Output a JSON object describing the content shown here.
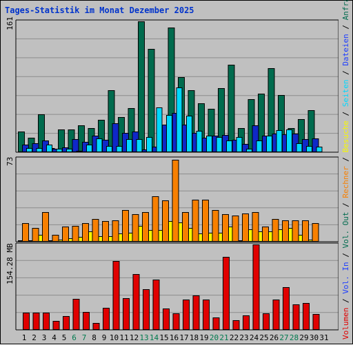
{
  "chart_data": {
    "type": "bar",
    "title": "Tages-Statistik im Monat Dezember 2025",
    "days": [
      "1",
      "2",
      "3",
      "4",
      "5",
      "6",
      "7",
      "8",
      "9",
      "10",
      "11",
      "12",
      "13",
      "14",
      "15",
      "16",
      "17",
      "18",
      "19",
      "20",
      "21",
      "22",
      "23",
      "24",
      "25",
      "26",
      "27",
      "28",
      "29",
      "30",
      "31"
    ],
    "weekend_days": [
      "6",
      "7",
      "13",
      "14",
      "20",
      "21",
      "27",
      "28"
    ],
    "panels": [
      {
        "max_label": "161",
        "ylim": [
          0,
          161
        ],
        "series": [
          {
            "name": "Anfragen",
            "color": "#006b4e",
            "values": [
              25,
              18,
              47,
              5,
              28,
              28,
              33,
              30,
              40,
              76,
              43,
              54,
              161,
              127,
              32,
              153,
              92,
              76,
              60,
              53,
              79,
              108,
              30,
              65,
              72,
              103,
              70,
              30,
              41,
              52,
              0
            ]
          },
          {
            "name": "Dateien",
            "color": "#0f28c8",
            "values": [
              9,
              11,
              14,
              4,
              6,
              16,
              13,
              20,
              15,
              36,
              24,
              25,
              3,
              7,
              34,
              48,
              34,
              24,
              18,
              20,
              21,
              15,
              10,
              33,
              20,
              23,
              22,
              23,
              16,
              17,
              0
            ]
          },
          {
            "name": "Seiten",
            "color": "#00d8ff",
            "values": [
              5,
              5,
              9,
              4,
              4,
              2,
              9,
              17,
              8,
              8,
              16,
              16,
              19,
              55,
              46,
              80,
              45,
              26,
              20,
              19,
              14,
              19,
              4,
              14,
              20,
              27,
              28,
              11,
              8,
              7,
              0
            ]
          }
        ]
      },
      {
        "max_label": "73",
        "ylim": [
          0,
          73
        ],
        "series": [
          {
            "name": "Besuche",
            "color": "#f8f800",
            "values": [
              1,
              1,
              6,
              1,
              2,
              3,
              4,
              9,
              5,
              5,
              7,
              8,
              14,
              10,
              10,
              18,
              17,
              12,
              7,
              8,
              8,
              13,
              1,
              11,
              9,
              9,
              11,
              12,
              6,
              2,
              0
            ]
          },
          {
            "name": "Rechner",
            "color": "#f88000",
            "values": [
              16,
              12,
              26,
              6,
              13,
              14,
              16,
              20,
              18,
              19,
              28,
              24,
              26,
              40,
              36,
              72,
              26,
              37,
              37,
              28,
              24,
              23,
              25,
              26,
              13,
              20,
              19,
              19,
              19,
              16,
              0
            ]
          }
        ]
      },
      {
        "max_label": "154.28 MB",
        "ylim": [
          0,
          154.28
        ],
        "series": [
          {
            "name": "Volumen",
            "color": "#e00000",
            "values": [
              31,
              31,
              31,
              16,
              25,
              56,
              32,
              13,
              40,
              124,
              57,
              101,
              74,
              91,
              39,
              30,
              55,
              62,
              55,
              22,
              132,
              17,
              26,
              154,
              30,
              55,
              77,
              46,
              48,
              28,
              0
            ]
          }
        ]
      }
    ],
    "legend": [
      {
        "label": "Volumen",
        "color": "#e00000"
      },
      {
        "label": "Vol. In",
        "color": "#1c3cff"
      },
      {
        "label": "Vol. Out",
        "color": "#006b4e"
      },
      {
        "label": "Rechner",
        "color": "#f88000"
      },
      {
        "label": "Besuche",
        "color": "#f8f800"
      },
      {
        "label": "Seiten",
        "color": "#00d8ff"
      },
      {
        "label": "Dateien",
        "color": "#1c3cff"
      },
      {
        "label": "Anfragen",
        "color": "#006b4e"
      }
    ],
    "legend_separator": "/",
    "grid": true
  }
}
